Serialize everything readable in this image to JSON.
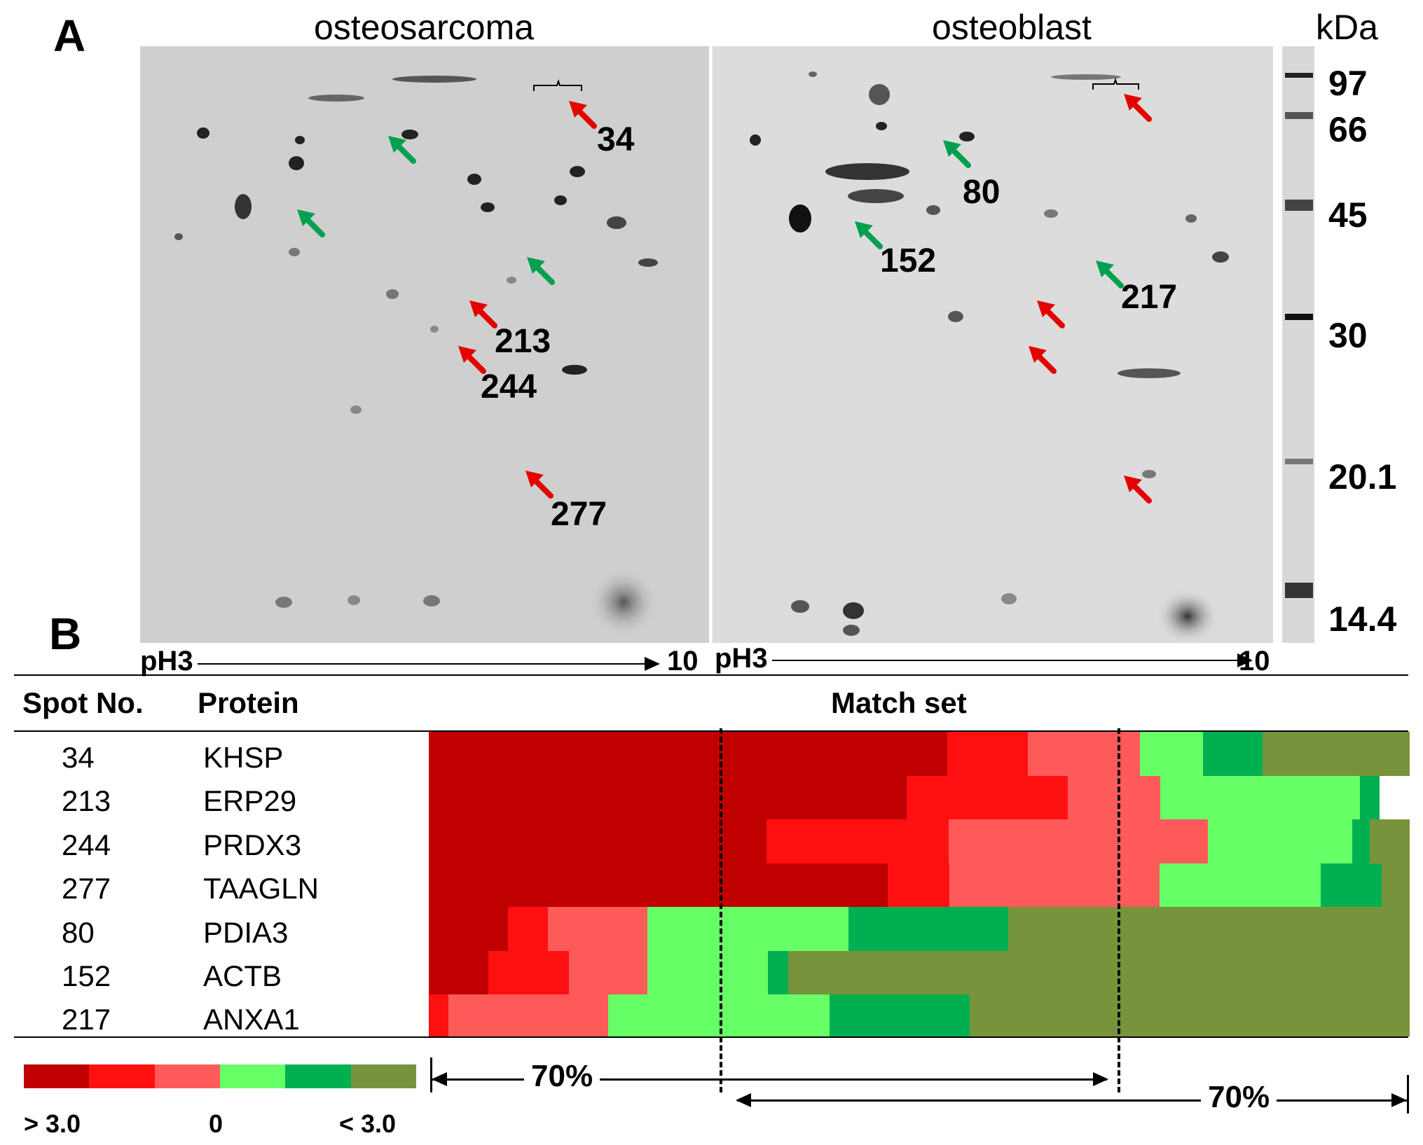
{
  "panel_a": {
    "letter": "A",
    "left_gel_title": "osteosarcoma",
    "right_gel_title": "osteoblast",
    "kda_label": "kDa",
    "markers": [
      "97",
      "66",
      "45",
      "30",
      "20.1",
      "14.4"
    ],
    "ph_start": "pH3",
    "ph_end": "10",
    "left_spot_labels": [
      "34",
      "213",
      "244",
      "277"
    ],
    "right_spot_labels": [
      "80",
      "152",
      "217"
    ]
  },
  "panel_b": {
    "letter": "B",
    "headers": {
      "spot": "Spot No.",
      "protein": "Protein",
      "match": "Match set"
    },
    "rows": [
      {
        "spot": "34",
        "protein": "KHSP"
      },
      {
        "spot": "213",
        "protein": "ERP29"
      },
      {
        "spot": "244",
        "protein": "PRDX3"
      },
      {
        "spot": "277",
        "protein": "TAAGLN"
      },
      {
        "spot": "80",
        "protein": "PDIA3"
      },
      {
        "spot": "152",
        "protein": "ACTB"
      },
      {
        "spot": "217",
        "protein": "ANXA1"
      }
    ],
    "pct_left": "70%",
    "pct_right": "70%",
    "legend": {
      "colors": [
        "#c00000",
        "#ff1010",
        "#ff5a5a",
        "#66ff66",
        "#00b050",
        "#77933c"
      ],
      "label_high": "> 3.0",
      "label_mid": "0",
      "label_low": "< 3.0"
    },
    "heatmap_colors": {
      "dark_red": "#c00000",
      "red": "#ff1010",
      "pink": "#ff5a5a",
      "light_green": "#66ff66",
      "green": "#00b050",
      "olive": "#77933c"
    }
  }
}
